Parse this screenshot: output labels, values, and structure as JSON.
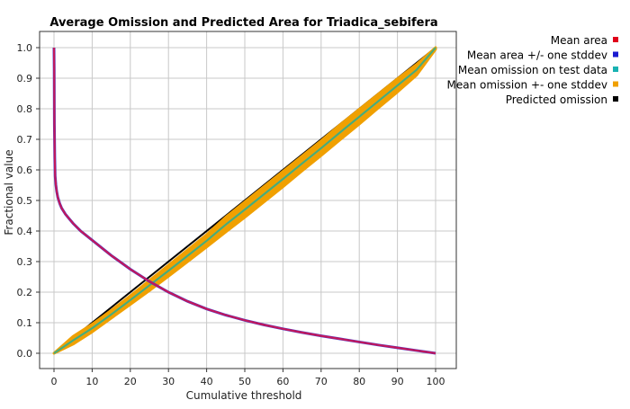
{
  "chart_data": {
    "type": "line",
    "title": "Average Omission and Predicted Area for Triadica_sebifera",
    "xlabel": "Cumulative threshold",
    "ylabel": "Fractional value",
    "xlim": [
      0,
      100
    ],
    "ylim": [
      0,
      1.0
    ],
    "x_ticks": [
      "0",
      "10",
      "20",
      "30",
      "40",
      "50",
      "60",
      "70",
      "80",
      "90",
      "100"
    ],
    "y_ticks": [
      "0.0",
      "0.1",
      "0.2",
      "0.3",
      "0.4",
      "0.5",
      "0.6",
      "0.7",
      "0.8",
      "0.9",
      "1.0"
    ],
    "grid": true,
    "legend_position": "top-right",
    "legend": [
      {
        "label": "Mean area",
        "color": "#e0001a"
      },
      {
        "label": "Mean area +/- one stddev",
        "color": "#1a1ad0"
      },
      {
        "label": "Mean omission on test data",
        "color": "#19b2b2"
      },
      {
        "label": "Mean omission +- one stddev",
        "color": "#f0a000"
      },
      {
        "label": "Predicted omission",
        "color": "#000000"
      }
    ],
    "series": [
      {
        "name": "Predicted omission",
        "color": "#000000",
        "x": [
          0,
          100
        ],
        "y": [
          0,
          1.0
        ]
      },
      {
        "name": "Mean omission +- one stddev",
        "color": "#f0a000",
        "x": [
          0,
          5,
          10,
          15,
          20,
          25,
          30,
          35,
          40,
          45,
          50,
          55,
          60,
          65,
          70,
          75,
          80,
          85,
          90,
          95,
          100
        ],
        "y_low": [
          0,
          0.03,
          0.07,
          0.115,
          0.16,
          0.205,
          0.252,
          0.3,
          0.348,
          0.397,
          0.445,
          0.495,
          0.545,
          0.597,
          0.647,
          0.699,
          0.75,
          0.803,
          0.855,
          0.91,
          0.995
        ],
        "y_high": [
          0,
          0.055,
          0.095,
          0.14,
          0.188,
          0.238,
          0.288,
          0.338,
          0.388,
          0.445,
          0.495,
          0.545,
          0.595,
          0.645,
          0.695,
          0.748,
          0.798,
          0.848,
          0.898,
          0.945,
          1.0
        ]
      },
      {
        "name": "Mean omission on test data",
        "color": "#19b2b2",
        "x": [
          0,
          5,
          10,
          15,
          20,
          25,
          30,
          35,
          40,
          45,
          50,
          55,
          60,
          65,
          70,
          75,
          80,
          85,
          90,
          95,
          100
        ],
        "y": [
          0,
          0.042,
          0.082,
          0.127,
          0.174,
          0.222,
          0.27,
          0.319,
          0.368,
          0.421,
          0.47,
          0.52,
          0.57,
          0.621,
          0.671,
          0.723,
          0.774,
          0.825,
          0.876,
          0.927,
          1.0
        ]
      },
      {
        "name": "Mean area",
        "color": "#e0001a",
        "x": [
          0,
          0.05,
          0.1,
          0.2,
          0.3,
          0.5,
          0.7,
          1,
          1.5,
          2,
          3,
          4,
          5,
          7,
          10,
          15,
          20,
          25,
          30,
          35,
          40,
          45,
          50,
          55,
          60,
          65,
          70,
          75,
          80,
          85,
          90,
          95,
          100
        ],
        "y": [
          1.0,
          0.93,
          0.75,
          0.64,
          0.58,
          0.55,
          0.53,
          0.51,
          0.49,
          0.475,
          0.455,
          0.44,
          0.425,
          0.4,
          0.37,
          0.32,
          0.275,
          0.235,
          0.2,
          0.17,
          0.145,
          0.125,
          0.108,
          0.093,
          0.08,
          0.068,
          0.057,
          0.047,
          0.037,
          0.027,
          0.018,
          0.009,
          0.0
        ]
      }
    ]
  }
}
